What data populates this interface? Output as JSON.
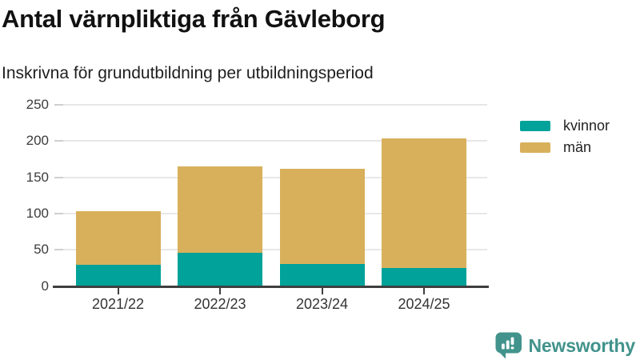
{
  "title": "Antal värnpliktiga från Gävleborg",
  "subtitle": "Inskrivna för grundutbildning per utbildningsperiod",
  "legend": {
    "items": [
      {
        "label": "kvinnor",
        "color": "#00a29a"
      },
      {
        "label": "män",
        "color": "#d8b05c"
      }
    ]
  },
  "footer": {
    "brand": "Newsworthy",
    "logo_icon": "bar-chart-speech-bubble-icon",
    "brand_color": "#42938c"
  },
  "chart_data": {
    "type": "bar",
    "stacked": true,
    "title": "Antal värnpliktiga från Gävleborg",
    "subtitle": "Inskrivna för grundutbildning per utbildningsperiod",
    "categories": [
      "2021/22",
      "2022/23",
      "2023/24",
      "2024/25"
    ],
    "series": [
      {
        "name": "kvinnor",
        "color": "#00a29a",
        "values": [
          29,
          46,
          31,
          25
        ]
      },
      {
        "name": "män",
        "color": "#d8b05c",
        "values": [
          74,
          119,
          131,
          178
        ]
      }
    ],
    "totals": [
      103,
      165,
      162,
      203
    ],
    "xlabel": "",
    "ylabel": "",
    "ylim": [
      0,
      250
    ],
    "y_ticks": [
      0,
      50,
      100,
      150,
      200,
      250
    ],
    "grid": true,
    "legend_position": "right",
    "axis_color": "#3f3f3f",
    "grid_color": "#e7e7e7"
  }
}
